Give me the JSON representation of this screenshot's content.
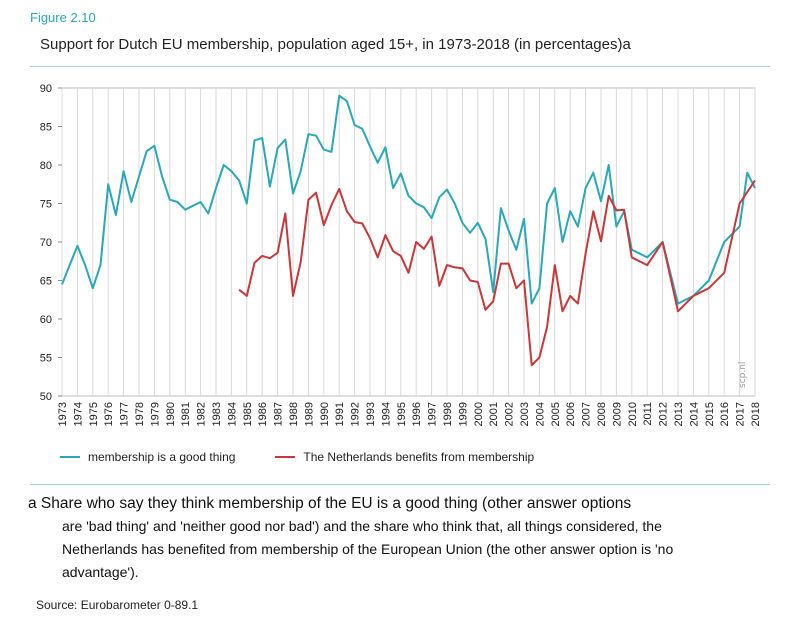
{
  "figure_label": "Figure 2.10",
  "title": "Support for Dutch EU membership, population aged 15+, in 1973-2018 (in percentages)a",
  "watermark": "scp.nl",
  "legend": [
    {
      "label": "membership is a good thing",
      "color": "#2aa7b8"
    },
    {
      "label": "The Netherlands benefits from membership",
      "color": "#c8373a"
    }
  ],
  "note_first": "a Share who say they think membership of the EU is a good thing (other answer options",
  "note_rest": "are 'bad thing' and 'neither good nor bad') and the share who think that, all things considered, the Netherlands has benefited from membership of the European Union (the other answer option is 'no advantage').",
  "source": "Source: Eurobarometer 0-89.1",
  "chart_data": {
    "type": "line",
    "title": "Support for Dutch EU membership, population aged 15+, in 1973-2018 (in percentages)a",
    "xlabel": "",
    "ylabel": "",
    "ylim": [
      50,
      90
    ],
    "xlim": [
      1973,
      2018
    ],
    "yticks": [
      50,
      55,
      60,
      65,
      70,
      75,
      80,
      85,
      90
    ],
    "xticks": [
      1973,
      1974,
      1975,
      1976,
      1977,
      1978,
      1979,
      1980,
      1981,
      1982,
      1983,
      1984,
      1985,
      1986,
      1987,
      1988,
      1989,
      1990,
      1991,
      1992,
      1993,
      1994,
      1995,
      1996,
      1997,
      1998,
      1999,
      2000,
      2001,
      2002,
      2003,
      2004,
      2005,
      2006,
      2007,
      2008,
      2009,
      2010,
      2011,
      2012,
      2013,
      2014,
      2015,
      2016,
      2017,
      2018
    ],
    "grid": "vertical",
    "legend_position": "bottom",
    "series": [
      {
        "name": "membership is a good thing",
        "color": "#2aa7b8",
        "x": [
          1973,
          1974,
          1974.5,
          1975,
          1975.5,
          1976,
          1976.5,
          1977,
          1977.5,
          1978,
          1978.5,
          1979,
          1979.5,
          1980,
          1980.5,
          1981,
          1981.5,
          1982,
          1982.5,
          1983,
          1983.5,
          1984,
          1984.5,
          1985,
          1985.5,
          1986,
          1986.5,
          1987,
          1987.5,
          1988,
          1988.5,
          1989,
          1989.5,
          1990,
          1990.5,
          1991,
          1991.5,
          1992,
          1992.5,
          1993,
          1993.5,
          1994,
          1994.5,
          1995,
          1995.5,
          1996,
          1996.5,
          1997,
          1997.5,
          1998,
          1998.5,
          1999,
          1999.5,
          2000,
          2000.5,
          2001,
          2001.5,
          2002,
          2002.5,
          2003,
          2003.5,
          2004,
          2004.5,
          2005,
          2005.5,
          2006,
          2006.5,
          2007,
          2007.5,
          2008,
          2008.5,
          2009,
          2009.5,
          2010,
          2011,
          2012,
          2013,
          2014,
          2015,
          2016,
          2017,
          2017.5,
          2018
        ],
        "y": [
          64.5,
          69.5,
          67,
          64,
          67,
          77.5,
          73.5,
          79.2,
          75.2,
          78.5,
          81.8,
          82.5,
          78.5,
          75.5,
          75.2,
          74.2,
          74.7,
          75.2,
          73.7,
          77,
          80,
          79.2,
          78,
          75,
          83.2,
          83.5,
          77.2,
          82.2,
          83.3,
          76.3,
          79.2,
          84,
          83.8,
          82,
          81.7,
          89,
          88.3,
          85.2,
          84.7,
          82.4,
          80.3,
          82.3,
          77,
          78.9,
          76,
          75,
          74.5,
          73.1,
          75.8,
          76.8,
          75,
          72.5,
          71.2,
          72.5,
          70.4,
          63.5,
          74.4,
          71.5,
          69,
          73,
          62,
          64,
          75,
          77,
          70,
          74,
          72,
          77,
          79,
          75.3,
          80,
          72,
          74,
          69,
          68,
          70,
          62,
          63,
          65,
          70,
          72,
          79,
          77
        ]
      },
      {
        "name": "The Netherlands benefits from membership",
        "color": "#c8373a",
        "x": [
          1984.5,
          1985,
          1985.5,
          1986,
          1986.5,
          1987,
          1987.5,
          1988,
          1988.5,
          1989,
          1989.5,
          1990,
          1990.5,
          1991,
          1991.5,
          1992,
          1992.5,
          1993,
          1993.5,
          1994,
          1994.5,
          1995,
          1995.5,
          1996,
          1996.5,
          1997,
          1997.5,
          1998,
          1998.5,
          1999,
          1999.5,
          2000,
          2000.5,
          2001,
          2001.5,
          2002,
          2002.5,
          2003,
          2003.5,
          2004,
          2004.5,
          2005,
          2005.5,
          2006,
          2006.5,
          2007,
          2007.5,
          2008,
          2008.5,
          2009,
          2009.5,
          2010,
          2011,
          2012,
          2013,
          2014,
          2015,
          2016,
          2017,
          2018
        ],
        "y": [
          63.8,
          63,
          67.3,
          68.2,
          67.9,
          68.6,
          73.7,
          63,
          67.4,
          75.5,
          76.4,
          72.2,
          74.8,
          76.9,
          74,
          72.6,
          72.4,
          70.5,
          68,
          70.9,
          68.8,
          68.2,
          66,
          70,
          69.1,
          70.7,
          64.3,
          67,
          66.7,
          66.6,
          65,
          64.8,
          61.2,
          62.3,
          67.2,
          67.2,
          64,
          65,
          54,
          55,
          59,
          67,
          61,
          63,
          62,
          68.5,
          74,
          70.1,
          76,
          74.1,
          74.2,
          68,
          67,
          70,
          61,
          63,
          64,
          66,
          75,
          78
        ]
      }
    ]
  }
}
